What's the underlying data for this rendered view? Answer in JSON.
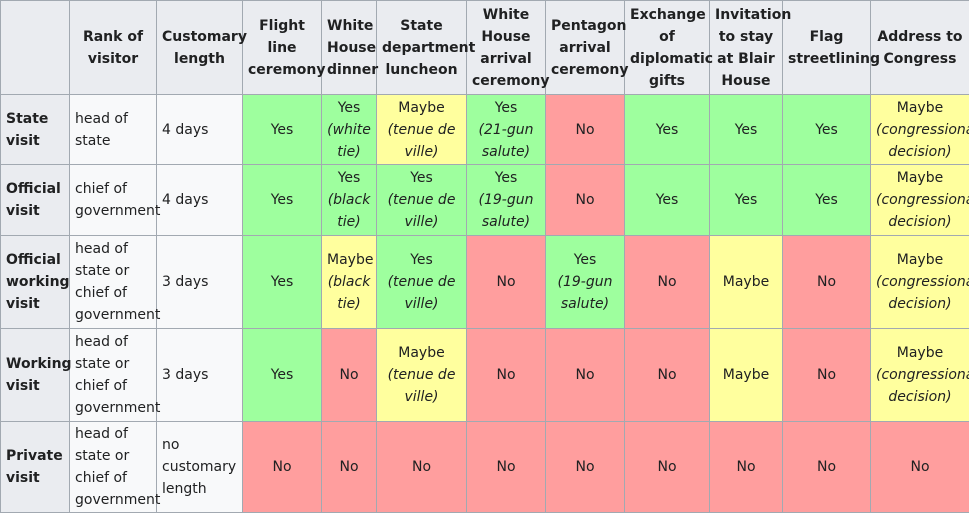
{
  "colors": {
    "yes": "#9eff9e",
    "maybe": "#ffff9e",
    "no": "#ff9e9e",
    "header": "#eaecf0",
    "cell": "#f8f9fa",
    "border": "#a2a9b1"
  },
  "headers": [
    "",
    "Rank of visitor",
    "Customary length",
    "Flight line ceremony",
    "White House dinner",
    "State department luncheon",
    "White House arrival ceremony",
    "Pentagon arrival ceremony",
    "Exchange of diplomatic gifts",
    "Invitation to stay at Blair House",
    "Flag streetlining",
    "Address to Congress"
  ],
  "rows": [
    {
      "type": "State visit",
      "rank": "head of state",
      "length": "4 days",
      "cells": [
        {
          "status": "yes",
          "value": "Yes",
          "note": ""
        },
        {
          "status": "yes",
          "value": "Yes",
          "note": "(white tie)"
        },
        {
          "status": "maybe",
          "value": "Maybe",
          "note": "(tenue de ville)"
        },
        {
          "status": "yes",
          "value": "Yes",
          "note": "(21-gun salute)"
        },
        {
          "status": "no",
          "value": "No",
          "note": ""
        },
        {
          "status": "yes",
          "value": "Yes",
          "note": ""
        },
        {
          "status": "yes",
          "value": "Yes",
          "note": ""
        },
        {
          "status": "yes",
          "value": "Yes",
          "note": ""
        },
        {
          "status": "maybe",
          "value": "Maybe",
          "note": "(congressional decision)"
        }
      ]
    },
    {
      "type": "Official visit",
      "rank": "chief of government",
      "length": "4 days",
      "cells": [
        {
          "status": "yes",
          "value": "Yes",
          "note": ""
        },
        {
          "status": "yes",
          "value": "Yes",
          "note": "(black tie)"
        },
        {
          "status": "yes",
          "value": "Yes",
          "note": "(tenue de ville)"
        },
        {
          "status": "yes",
          "value": "Yes",
          "note": "(19-gun salute)"
        },
        {
          "status": "no",
          "value": "No",
          "note": ""
        },
        {
          "status": "yes",
          "value": "Yes",
          "note": ""
        },
        {
          "status": "yes",
          "value": "Yes",
          "note": ""
        },
        {
          "status": "yes",
          "value": "Yes",
          "note": ""
        },
        {
          "status": "maybe",
          "value": "Maybe",
          "note": "(congressional decision)"
        }
      ]
    },
    {
      "type": "Official working visit",
      "rank": "head of state or chief of government",
      "length": "3 days",
      "cells": [
        {
          "status": "yes",
          "value": "Yes",
          "note": ""
        },
        {
          "status": "maybe",
          "value": "Maybe",
          "note": "(black tie)"
        },
        {
          "status": "yes",
          "value": "Yes",
          "note": "(tenue de ville)"
        },
        {
          "status": "no",
          "value": "No",
          "note": ""
        },
        {
          "status": "yes",
          "value": "Yes",
          "note": "(19-gun salute)"
        },
        {
          "status": "no",
          "value": "No",
          "note": ""
        },
        {
          "status": "maybe",
          "value": "Maybe",
          "note": ""
        },
        {
          "status": "no",
          "value": "No",
          "note": ""
        },
        {
          "status": "maybe",
          "value": "Maybe",
          "note": "(congressional decision)"
        }
      ]
    },
    {
      "type": "Working visit",
      "rank": "head of state or chief of government",
      "length": "3 days",
      "cells": [
        {
          "status": "yes",
          "value": "Yes",
          "note": ""
        },
        {
          "status": "no",
          "value": "No",
          "note": ""
        },
        {
          "status": "maybe",
          "value": "Maybe",
          "note": "(tenue de ville)"
        },
        {
          "status": "no",
          "value": "No",
          "note": ""
        },
        {
          "status": "no",
          "value": "No",
          "note": ""
        },
        {
          "status": "no",
          "value": "No",
          "note": ""
        },
        {
          "status": "maybe",
          "value": "Maybe",
          "note": ""
        },
        {
          "status": "no",
          "value": "No",
          "note": ""
        },
        {
          "status": "maybe",
          "value": "Maybe",
          "note": "(congressional decision)"
        }
      ]
    },
    {
      "type": "Private visit",
      "rank": "head of state or chief of government",
      "length": "no customary length",
      "cells": [
        {
          "status": "no",
          "value": "No",
          "note": ""
        },
        {
          "status": "no",
          "value": "No",
          "note": ""
        },
        {
          "status": "no",
          "value": "No",
          "note": ""
        },
        {
          "status": "no",
          "value": "No",
          "note": ""
        },
        {
          "status": "no",
          "value": "No",
          "note": ""
        },
        {
          "status": "no",
          "value": "No",
          "note": ""
        },
        {
          "status": "no",
          "value": "No",
          "note": ""
        },
        {
          "status": "no",
          "value": "No",
          "note": ""
        },
        {
          "status": "no",
          "value": "No",
          "note": ""
        }
      ]
    }
  ]
}
